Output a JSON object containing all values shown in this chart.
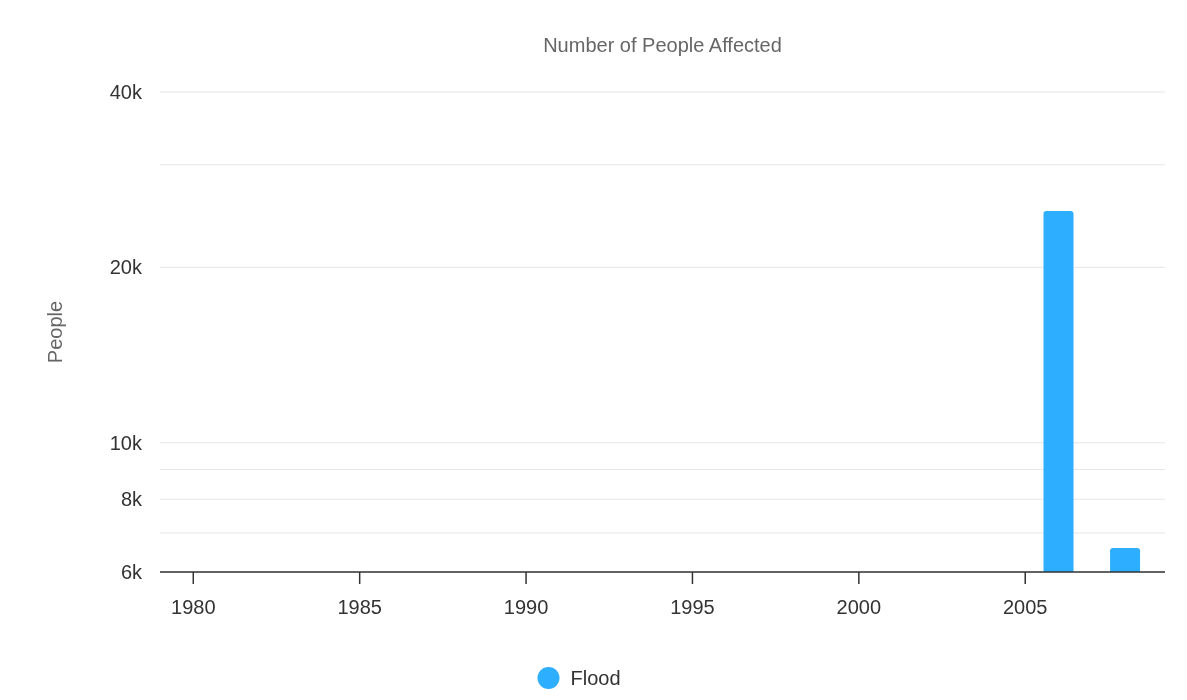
{
  "chart_data": {
    "type": "bar",
    "title": "Number of People Affected",
    "ylabel": "People",
    "x": [
      2006,
      2008
    ],
    "series": [
      {
        "name": "Flood",
        "color": "#2eaefe",
        "values": [
          25000,
          6600
        ]
      }
    ],
    "log": true,
    "xlim": [
      1979,
      2009.2
    ],
    "xticks": [
      1980,
      1985,
      1990,
      1995,
      2000,
      2005
    ],
    "ylim": [
      6000,
      40000
    ],
    "yticks": [
      {
        "value": 6000,
        "label": "6k"
      },
      {
        "value": 7000,
        "label": null
      },
      {
        "value": 8000,
        "label": "8k"
      },
      {
        "value": 9000,
        "label": null
      },
      {
        "value": 10000,
        "label": "10k"
      },
      {
        "value": 20000,
        "label": "20k"
      },
      {
        "value": 30000,
        "label": null
      },
      {
        "value": 40000,
        "label": "40k"
      }
    ],
    "grid": "y",
    "legend": "bottom"
  }
}
